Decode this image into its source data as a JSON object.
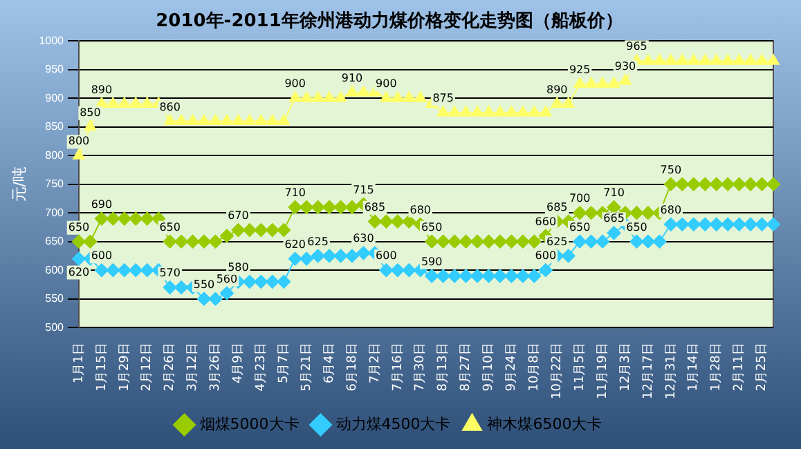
{
  "chart_data": {
    "type": "line",
    "title": "2010年-2011年徐州港动力煤价格变化走势图（船板价）",
    "ylabel": "元/吨",
    "categories": [
      "1月1日",
      null,
      "1月15日",
      null,
      "1月29日",
      null,
      "2月12日",
      null,
      "2月26日",
      null,
      "3月12日",
      null,
      "3月26日",
      null,
      "4月9日",
      null,
      "4月23日",
      null,
      "5月7日",
      null,
      "5月21日",
      null,
      "6月4日",
      null,
      "6月18日",
      null,
      "7月2日",
      null,
      "7月16日",
      null,
      "7月30日",
      null,
      "8月13日",
      null,
      "8月27日",
      null,
      "9月10日",
      null,
      "9月24日",
      null,
      "10月8日",
      null,
      "10月22日",
      null,
      "11月5日",
      null,
      "11月19日",
      null,
      "12月3日",
      null,
      "12月17日",
      null,
      "12月31日",
      null,
      "1月14日",
      null,
      "1月28日",
      null,
      "2月11日",
      null,
      "2月25日",
      null
    ],
    "series": [
      {
        "name": "烟煤5000大卡",
        "color": "#99cc00",
        "marker": "diamond",
        "values": [
          650,
          650,
          690,
          690,
          690,
          690,
          690,
          690,
          650,
          650,
          650,
          650,
          650,
          660,
          670,
          670,
          670,
          670,
          670,
          710,
          710,
          710,
          710,
          710,
          710,
          715,
          685,
          685,
          685,
          685,
          680,
          650,
          650,
          650,
          650,
          650,
          650,
          650,
          650,
          650,
          650,
          660,
          685,
          685,
          700,
          700,
          700,
          710,
          700,
          700,
          700,
          700,
          750,
          750,
          750,
          750,
          750,
          750,
          750,
          750,
          750,
          750
        ],
        "value_labels": [
          "650",
          null,
          "690",
          null,
          null,
          null,
          null,
          null,
          "650",
          null,
          null,
          null,
          null,
          null,
          "670",
          null,
          null,
          null,
          null,
          "710",
          null,
          null,
          null,
          null,
          null,
          "715",
          "685",
          null,
          null,
          null,
          "680",
          "650",
          null,
          null,
          null,
          null,
          null,
          null,
          null,
          null,
          null,
          "660",
          "685",
          null,
          "700",
          null,
          null,
          "710",
          null,
          null,
          null,
          null,
          "750",
          null,
          null,
          null,
          null,
          null,
          null,
          null,
          null,
          null
        ]
      },
      {
        "name": "动力煤4500大卡",
        "color": "#33ccff",
        "marker": "diamond",
        "values": [
          620,
          620,
          600,
          600,
          600,
          600,
          600,
          600,
          570,
          570,
          570,
          550,
          550,
          560,
          580,
          580,
          580,
          580,
          580,
          620,
          620,
          625,
          625,
          625,
          625,
          630,
          630,
          600,
          600,
          600,
          600,
          590,
          590,
          590,
          590,
          590,
          590,
          590,
          590,
          590,
          590,
          600,
          625,
          625,
          650,
          650,
          650,
          665,
          680,
          650,
          650,
          650,
          680,
          680,
          680,
          680,
          680,
          680,
          680,
          680,
          680,
          680
        ],
        "value_labels": [
          "620",
          null,
          "600",
          null,
          null,
          null,
          null,
          null,
          "570",
          null,
          null,
          "550",
          null,
          "560",
          "580",
          null,
          null,
          null,
          null,
          "620",
          null,
          "625",
          null,
          null,
          null,
          "630",
          null,
          "600",
          null,
          null,
          null,
          "590",
          null,
          null,
          null,
          null,
          null,
          null,
          null,
          null,
          null,
          "600",
          "625",
          null,
          "650",
          null,
          null,
          "665",
          null,
          "650",
          null,
          null,
          "680",
          null,
          null,
          null,
          null,
          null,
          null,
          null,
          null,
          null
        ]
      },
      {
        "name": "神木煤6500大卡",
        "color": "#ffff66",
        "marker": "triangle",
        "values": [
          800,
          850,
          890,
          890,
          890,
          890,
          890,
          890,
          860,
          860,
          860,
          860,
          860,
          860,
          860,
          860,
          860,
          860,
          860,
          900,
          900,
          900,
          900,
          900,
          910,
          910,
          910,
          900,
          900,
          900,
          900,
          890,
          875,
          875,
          875,
          875,
          875,
          875,
          875,
          875,
          875,
          875,
          890,
          890,
          925,
          925,
          925,
          925,
          930,
          965,
          965,
          965,
          965,
          965,
          965,
          965,
          965,
          965,
          965,
          965,
          965,
          965
        ],
        "value_labels": [
          "800",
          "850",
          "890",
          null,
          null,
          null,
          null,
          null,
          "860",
          null,
          null,
          null,
          null,
          null,
          null,
          null,
          null,
          null,
          null,
          "900",
          null,
          null,
          null,
          null,
          "910",
          null,
          null,
          "900",
          null,
          null,
          null,
          null,
          "875",
          null,
          null,
          null,
          null,
          null,
          null,
          null,
          null,
          null,
          "890",
          null,
          "925",
          null,
          null,
          null,
          "930",
          "965",
          null,
          null,
          null,
          null,
          null,
          null,
          null,
          null,
          null,
          null,
          null,
          null
        ]
      }
    ],
    "ylim": [
      500,
      1000
    ],
    "yticks": [
      500,
      550,
      600,
      650,
      700,
      750,
      800,
      850,
      900,
      950,
      1000
    ],
    "grid": "y",
    "legend": "bottom"
  }
}
